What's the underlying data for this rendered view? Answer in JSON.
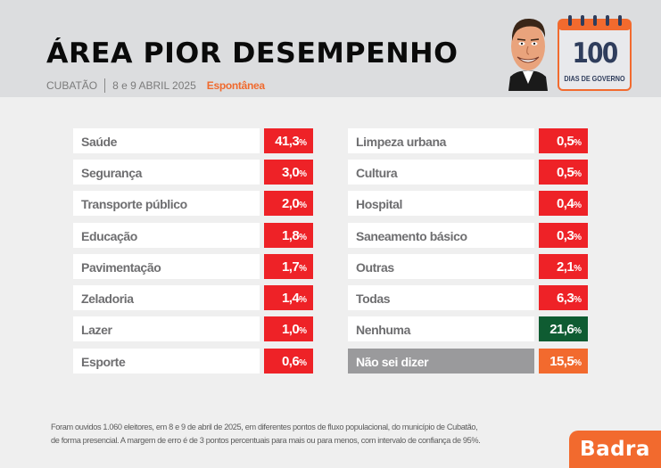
{
  "header": {
    "title": "ÁREA PIOR DESEMPENHO",
    "city": "CUBATÃO",
    "dates": "8 e 9 ABRIL 2025",
    "mode": "Espontânea",
    "badge_number": "100",
    "badge_text": "DIAS DE GOVERNO"
  },
  "colors": {
    "red": "#ee2227",
    "green": "#0f5c32",
    "orange": "#f26a2e",
    "gray": "#9a9a9c",
    "header_bg": "#dcdddf"
  },
  "left_column": [
    {
      "label": "Saúde",
      "value": "41,3",
      "unit": "%"
    },
    {
      "label": "Segurança",
      "value": "3,0",
      "unit": "%"
    },
    {
      "label": "Transporte público",
      "value": "2,0",
      "unit": "%"
    },
    {
      "label": "Educação",
      "value": "1,8",
      "unit": "%"
    },
    {
      "label": "Pavimentação",
      "value": "1,7",
      "unit": "%"
    },
    {
      "label": "Zeladoria",
      "value": "1,4",
      "unit": "%"
    },
    {
      "label": "Lazer",
      "value": "1,0",
      "unit": "%"
    },
    {
      "label": "Esporte",
      "value": "0,6",
      "unit": "%"
    }
  ],
  "right_column": [
    {
      "label": "Limpeza urbana",
      "value": "0,5",
      "unit": "%"
    },
    {
      "label": "Cultura",
      "value": "0,5",
      "unit": "%"
    },
    {
      "label": "Hospital",
      "value": "0,4",
      "unit": "%"
    },
    {
      "label": "Saneamento básico",
      "value": "0,3",
      "unit": "%"
    },
    {
      "label": "Outras",
      "value": "2,1",
      "unit": "%"
    },
    {
      "label": "Todas",
      "value": "6,3",
      "unit": "%"
    },
    {
      "label": "Nenhuma",
      "value": "21,6",
      "unit": "%",
      "color": "green"
    },
    {
      "label": "Não sei dizer",
      "value": "15,5",
      "unit": "%",
      "color": "orange",
      "label_style": "gray"
    }
  ],
  "footnote": {
    "line1": "Foram ouvidos 1.060 eleitores, em 8 e 9 de abril de 2025, em diferentes pontos de fluxo populacional, do município de Cubatão,",
    "line2": "de forma presencial. A margem de erro é de 3 pontos percentuais para mais ou para menos, com intervalo de confiança de 95%."
  },
  "brand": {
    "logo_text": "Badra"
  }
}
